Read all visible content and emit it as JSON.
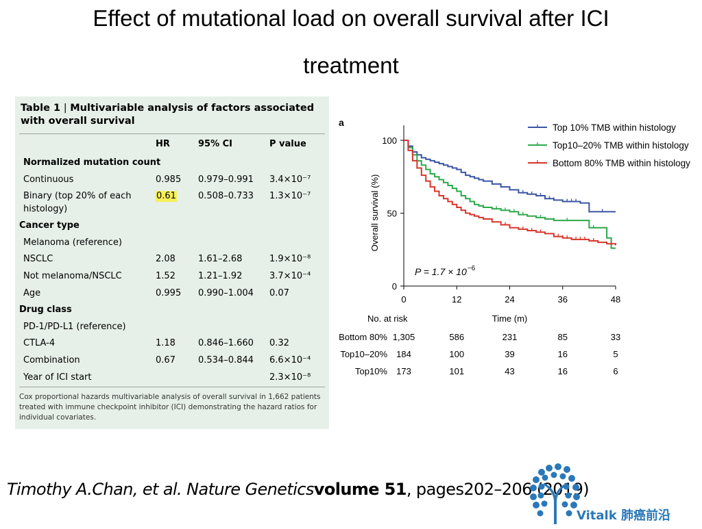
{
  "slide": {
    "title_line1": "Effect of mutational load on overall survival after ICI",
    "title_line2": "treatment"
  },
  "table": {
    "caption_bold": "Table 1",
    "caption_sep": " | ",
    "caption_text": "Multivariable analysis of factors associated with overall survival",
    "columns": [
      "HR",
      "95% CI",
      "P value"
    ],
    "rows": [
      {
        "label": "Normalized mutation count",
        "section": true
      },
      {
        "label": "Continuous",
        "hr": "0.985",
        "ci": "0.979–0.991",
        "p": "3.4×10⁻⁷"
      },
      {
        "label": "Binary (top 20% of each",
        "label2": "histology)",
        "hr": "0.61",
        "ci": "0.508–0.733",
        "p": "1.3×10⁻⁷",
        "highlight": true
      },
      {
        "label": "Cancer type",
        "section": true
      },
      {
        "label": "Melanoma (reference)"
      },
      {
        "label": "NSCLC",
        "hr": "2.08",
        "ci": "1.61–2.68",
        "p": "1.9×10⁻⁸"
      },
      {
        "label": "Not melanoma/NSCLC",
        "hr": "1.52",
        "ci": "1.21–1.92",
        "p": "3.7×10⁻⁴"
      },
      {
        "label": "Age",
        "hr": "0.995",
        "ci": "0.990–1.004",
        "p": "0.07"
      },
      {
        "label": "Drug class",
        "section": true
      },
      {
        "label": "PD-1/PD-L1 (reference)"
      },
      {
        "label": "CTLA-4",
        "hr": "1.18",
        "ci": "0.846–1.660",
        "p": "0.32"
      },
      {
        "label": "Combination",
        "hr": "0.67",
        "ci": "0.534–0.844",
        "p": "6.6×10⁻⁴"
      },
      {
        "label": "Year of ICI start",
        "p": "2.3×10⁻⁸"
      }
    ],
    "footnote": "Cox proportional hazards multivariable analysis of overall survival in 1,662 patients treated with immune checkpoint inhibitor (ICI) demonstrating the hazard ratios for individual covariates."
  },
  "chart_data": {
    "type": "line",
    "panel_label": "a",
    "xlabel": "Time (m)",
    "ylabel": "Overall survival (%)",
    "xlim": [
      0,
      48
    ],
    "ylim": [
      0,
      100
    ],
    "x_ticks": [
      0,
      12,
      24,
      36,
      48
    ],
    "y_ticks": [
      0,
      50,
      100
    ],
    "annotation": "P = 1.7 × 10",
    "annotation_exp": "−6",
    "legend_position": "top-right",
    "series": [
      {
        "name": "Top 10% TMB within histology",
        "color": "#3a53a4",
        "x": [
          0,
          1,
          2,
          3,
          4,
          5,
          6,
          7,
          8,
          9,
          10,
          11,
          12,
          13,
          14,
          15,
          16,
          17,
          18,
          20,
          22,
          24,
          26,
          28,
          30,
          32,
          34,
          36,
          38,
          40,
          41,
          42,
          44,
          46,
          48
        ],
        "y": [
          100,
          96,
          92,
          90,
          88,
          87,
          86,
          85,
          84,
          83,
          82,
          81,
          80,
          78,
          76,
          75,
          74,
          73,
          72,
          70,
          68,
          66,
          64,
          63,
          62,
          60,
          59,
          58,
          58,
          57,
          57,
          51,
          51,
          51,
          51
        ],
        "censor_x": [
          22,
          27,
          29,
          31,
          32,
          33,
          34,
          37,
          38,
          39,
          42,
          45
        ]
      },
      {
        "name": "Top10–20% TMB within histology",
        "color": "#2ca84a",
        "x": [
          0,
          1,
          2,
          3,
          4,
          5,
          6,
          7,
          8,
          9,
          10,
          11,
          12,
          13,
          14,
          15,
          16,
          17,
          18,
          20,
          22,
          24,
          26,
          28,
          30,
          32,
          34,
          36,
          38,
          40,
          42,
          44,
          46,
          47,
          48
        ],
        "y": [
          100,
          95,
          90,
          86,
          83,
          80,
          77,
          75,
          73,
          71,
          69,
          67,
          65,
          62,
          60,
          58,
          56,
          55,
          54,
          53,
          52,
          51,
          49,
          48,
          47,
          46,
          45,
          45,
          45,
          45,
          40,
          40,
          33,
          26,
          26
        ],
        "censor_x": [
          18,
          21,
          23,
          25,
          27,
          31,
          34,
          37,
          43
        ]
      },
      {
        "name": "Bottom 80% TMB within histology",
        "color": "#d8342a",
        "x": [
          0,
          1,
          2,
          3,
          4,
          5,
          6,
          7,
          8,
          9,
          10,
          11,
          12,
          13,
          14,
          15,
          16,
          17,
          18,
          20,
          22,
          24,
          26,
          28,
          30,
          32,
          34,
          36,
          38,
          40,
          42,
          44,
          46,
          48
        ],
        "y": [
          100,
          93,
          86,
          81,
          76,
          72,
          68,
          65,
          62,
          60,
          58,
          56,
          54,
          52,
          50,
          49,
          48,
          47,
          46,
          44,
          42,
          40,
          39,
          38,
          37,
          36,
          34,
          33,
          32,
          32,
          31,
          30,
          29,
          28
        ],
        "censor_x": [
          23,
          27,
          29,
          31,
          35,
          36,
          37,
          39,
          40,
          41,
          43,
          47
        ]
      }
    ],
    "risk_table": {
      "header": "No. at risk",
      "rows": [
        {
          "label": "Bottom 80%",
          "values": [
            "1,305",
            "586",
            "231",
            "85",
            "33"
          ]
        },
        {
          "label": "Top10–20%",
          "values": [
            "184",
            "100",
            "39",
            "16",
            "5"
          ]
        },
        {
          "label": "Top10%",
          "values": [
            "173",
            "101",
            "43",
            "16",
            "6"
          ]
        }
      ]
    }
  },
  "citation": {
    "authors": "Timothy A.Chan, et al. Nature Genetics",
    "volume_label": "volume 51",
    "pages": ", pages202–206 (2019)"
  },
  "logo": {
    "text": "Vitalk 肺癌前沿",
    "color": "#2b78b8"
  }
}
